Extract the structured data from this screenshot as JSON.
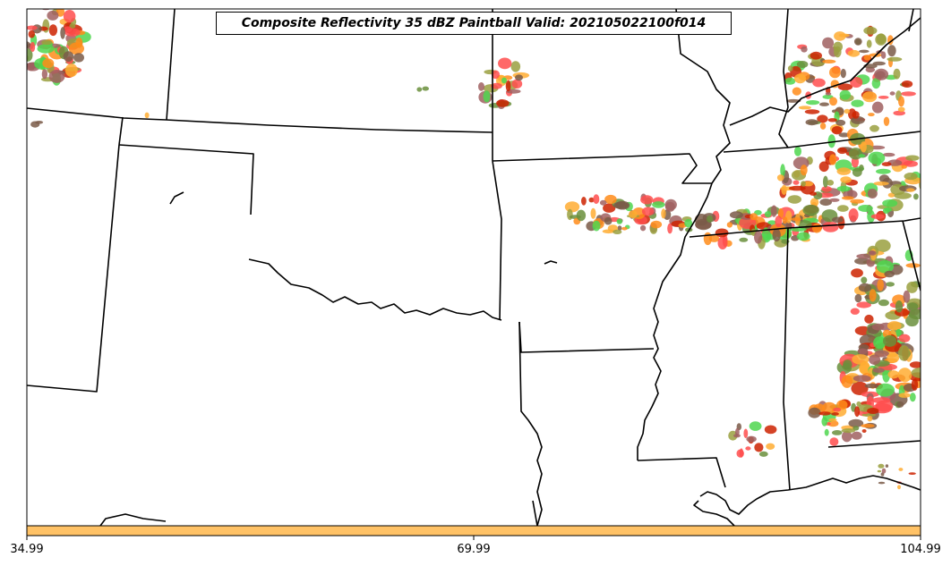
{
  "title": "Composite Reflectivity 35 dBZ Paintball Valid: 2021050221 00f014",
  "title_display": "Composite Reflectivity 35 dBZ Paintball Valid: 202105022100f014",
  "colorbar": {
    "ticks": [
      "34.99",
      "69.99",
      "104.99"
    ],
    "color": "#ffc266"
  },
  "paintball_colors": [
    "#ff4d4d",
    "#ff8c1a",
    "#ffad33",
    "#a06060",
    "#9aa040",
    "#4fd64f",
    "#6a8f3c",
    "#cc2200",
    "#7a5a48"
  ],
  "map": {
    "background": "#ffffff",
    "border_color": "#000000"
  }
}
